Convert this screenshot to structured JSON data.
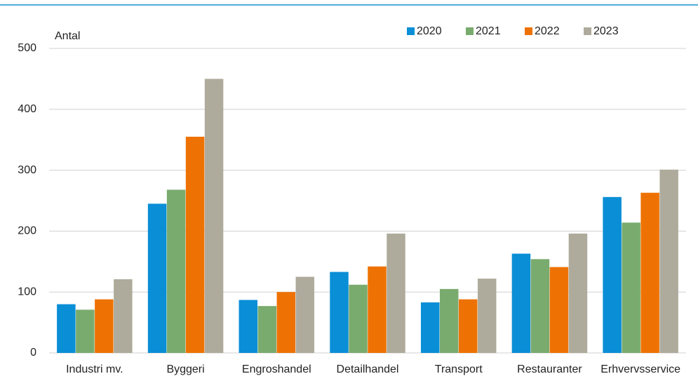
{
  "chart_data": {
    "type": "bar",
    "y_label": "Antal",
    "categories": [
      "Industri mv.",
      "Byggeri",
      "Engroshandel",
      "Detailhandel",
      "Transport",
      "Restauranter",
      "Erhvervsservice"
    ],
    "series": [
      {
        "name": "2020",
        "color": "#0a8ed6",
        "values": [
          80,
          245,
          87,
          133,
          83,
          163,
          256
        ]
      },
      {
        "name": "2021",
        "color": "#7aab6e",
        "values": [
          71,
          268,
          77,
          112,
          105,
          154,
          214
        ]
      },
      {
        "name": "2022",
        "color": "#ee7203",
        "values": [
          88,
          355,
          100,
          142,
          88,
          141,
          263
        ]
      },
      {
        "name": "2023",
        "color": "#aeab9c",
        "values": [
          121,
          450,
          125,
          196,
          122,
          196,
          301
        ]
      }
    ],
    "ylim": [
      0,
      500
    ],
    "yticks": [
      0,
      100,
      200,
      300,
      400,
      500
    ],
    "grid": true
  }
}
